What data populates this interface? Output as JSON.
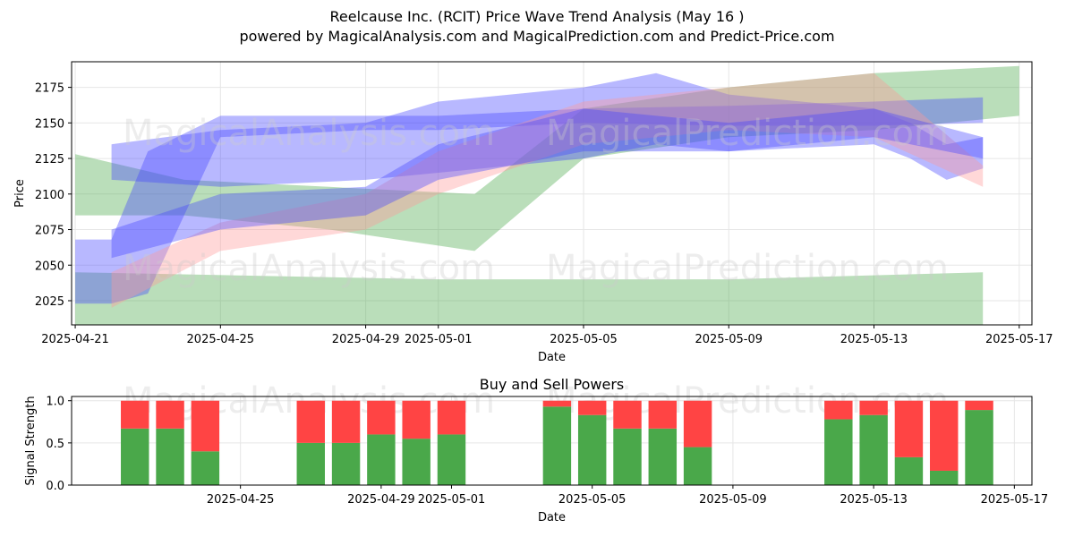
{
  "header": {
    "title": "Reelcause Inc. (RCIT) Price Wave Trend Analysis (May 16 )",
    "subtitle": "powered by MagicalAnalysis.com and MagicalPrediction.com and Predict-Price.com"
  },
  "watermarks": [
    "MagicalAnalysis.com",
    "MagicalPrediction.com"
  ],
  "colors": {
    "green": "#4aa84a",
    "red": "#ff4444",
    "blue": "#4444ff",
    "pink": "#ff9999"
  },
  "chart_data": [
    {
      "type": "area",
      "title": "",
      "xlabel": "Date",
      "ylabel": "Price",
      "xlim": [
        "2025-04-21",
        "2025-05-17"
      ],
      "ylim": [
        2008,
        2193
      ],
      "x_ticks": [
        "2025-04-21",
        "2025-04-25",
        "2025-04-29",
        "2025-05-01",
        "2025-05-05",
        "2025-05-09",
        "2025-05-13",
        "2025-05-17"
      ],
      "y_ticks": [
        2025,
        2050,
        2075,
        2100,
        2125,
        2150,
        2175
      ],
      "grid": true,
      "series": [
        {
          "color": "green",
          "dates": [
            "2025-04-21",
            "2025-04-24",
            "2025-04-28",
            "2025-05-02",
            "2025-05-05",
            "2025-05-09",
            "2025-05-13",
            "2025-05-17"
          ],
          "lower": [
            2085,
            2085,
            2075,
            2060,
            2125,
            2140,
            2145,
            2155
          ],
          "upper": [
            2128,
            2110,
            2105,
            2100,
            2160,
            2175,
            2185,
            2190
          ]
        },
        {
          "color": "green",
          "dates": [
            "2025-04-21",
            "2025-05-01",
            "2025-05-09",
            "2025-05-16"
          ],
          "lower": [
            2008,
            2008,
            2008,
            2008
          ],
          "upper": [
            2045,
            2040,
            2040,
            2045
          ]
        },
        {
          "color": "blue",
          "dates": [
            "2025-04-21",
            "2025-04-22",
            "2025-04-23",
            "2025-04-25",
            "2025-04-29",
            "2025-05-01",
            "2025-05-05",
            "2025-05-09",
            "2025-05-13",
            "2025-05-16"
          ],
          "lower": [
            2023,
            2023,
            2030,
            2140,
            2145,
            2145,
            2150,
            2148,
            2148,
            2150
          ],
          "upper": [
            2068,
            2068,
            2130,
            2155,
            2155,
            2155,
            2160,
            2162,
            2165,
            2168
          ]
        },
        {
          "color": "blue",
          "dates": [
            "2025-04-22",
            "2025-04-25",
            "2025-04-29",
            "2025-05-01",
            "2025-05-05",
            "2025-05-07",
            "2025-05-09",
            "2025-05-13",
            "2025-05-14",
            "2025-05-15",
            "2025-05-16"
          ],
          "lower": [
            2110,
            2105,
            2110,
            2115,
            2125,
            2135,
            2130,
            2135,
            2125,
            2110,
            2118
          ],
          "upper": [
            2135,
            2145,
            2150,
            2165,
            2175,
            2185,
            2170,
            2160,
            2150,
            2135,
            2140
          ]
        },
        {
          "color": "pink",
          "dates": [
            "2025-04-22",
            "2025-04-25",
            "2025-04-29",
            "2025-05-01",
            "2025-05-05",
            "2025-05-09",
            "2025-05-13",
            "2025-05-16"
          ],
          "lower": [
            2020,
            2060,
            2075,
            2100,
            2135,
            2145,
            2140,
            2105
          ],
          "upper": [
            2045,
            2080,
            2100,
            2130,
            2165,
            2175,
            2185,
            2120
          ]
        },
        {
          "color": "blue",
          "dates": [
            "2025-04-22",
            "2025-04-25",
            "2025-04-29",
            "2025-05-01",
            "2025-05-05",
            "2025-05-09",
            "2025-05-13",
            "2025-05-16"
          ],
          "lower": [
            2055,
            2075,
            2085,
            2110,
            2130,
            2130,
            2140,
            2125
          ],
          "upper": [
            2075,
            2100,
            2105,
            2135,
            2160,
            2150,
            2160,
            2140
          ]
        }
      ]
    },
    {
      "type": "bar",
      "title": "Buy and Sell Powers",
      "xlabel": "Date",
      "ylabel": "Signal Strength",
      "ylim": [
        0,
        1.05
      ],
      "y_ticks": [
        0.0,
        0.5,
        1.0
      ],
      "x_ticks": [
        "2025-04-25",
        "2025-04-29",
        "2025-05-01",
        "2025-05-05",
        "2025-05-09",
        "2025-05-13",
        "2025-05-17"
      ],
      "grid": true,
      "dates": [
        "2025-04-22",
        "2025-04-23",
        "2025-04-24",
        "2025-04-27",
        "2025-04-28",
        "2025-04-29",
        "2025-04-30",
        "2025-05-01",
        "2025-05-04",
        "2025-05-05",
        "2025-05-06",
        "2025-05-07",
        "2025-05-08",
        "2025-05-12",
        "2025-05-13",
        "2025-05-14",
        "2025-05-15",
        "2025-05-16"
      ],
      "buy": [
        0.67,
        0.67,
        0.4,
        0.5,
        0.5,
        0.6,
        0.55,
        0.6,
        0.93,
        0.83,
        0.67,
        0.67,
        0.45,
        0.78,
        0.83,
        0.33,
        0.17,
        0.89
      ],
      "sell": [
        0.33,
        0.33,
        0.6,
        0.5,
        0.5,
        0.4,
        0.45,
        0.4,
        0.07,
        0.17,
        0.33,
        0.33,
        0.55,
        0.22,
        0.17,
        0.67,
        0.83,
        0.11
      ]
    }
  ]
}
